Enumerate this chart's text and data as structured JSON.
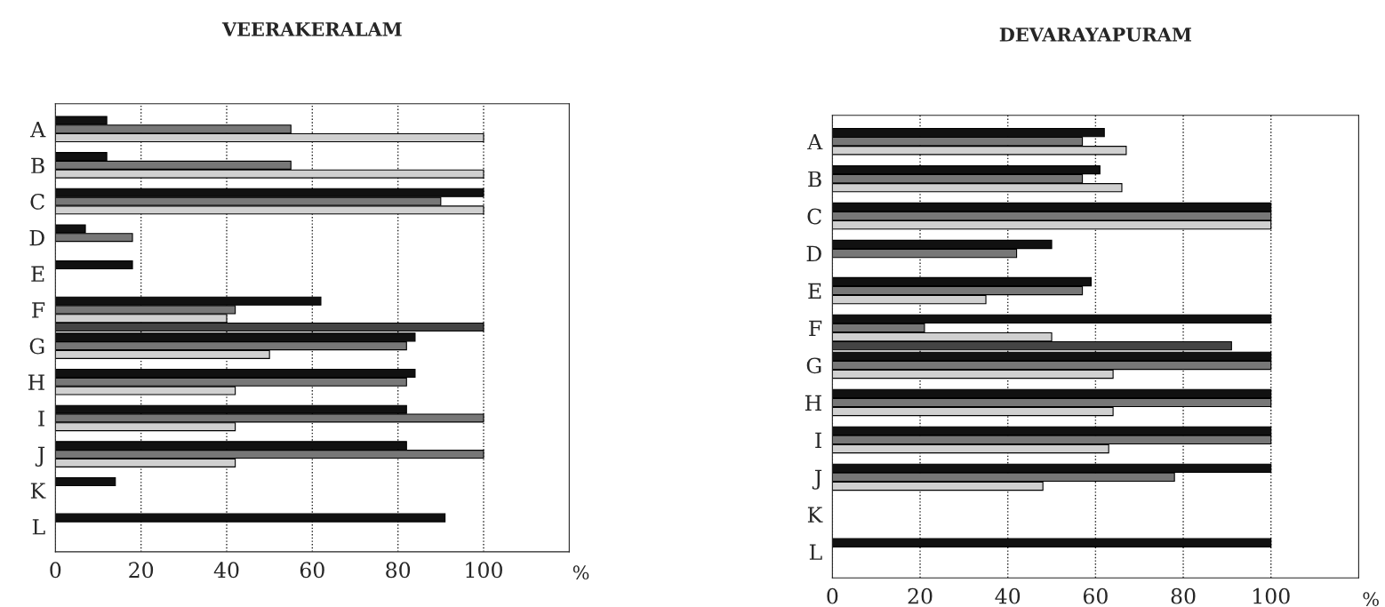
{
  "chart_data": [
    {
      "type": "bar",
      "orientation": "horizontal",
      "title": "VEERAKERALAM",
      "xlabel": "%",
      "categories": [
        "A",
        "B",
        "C",
        "D",
        "E",
        "F",
        "G",
        "H",
        "I",
        "J",
        "K",
        "L"
      ],
      "series": [
        {
          "color": "#111111",
          "values": [
            12,
            12,
            100,
            7,
            18,
            62,
            84,
            84,
            82,
            82,
            14,
            91
          ]
        },
        {
          "color": "#777777",
          "values": [
            55,
            55,
            90,
            18,
            null,
            42,
            82,
            82,
            100,
            100,
            null,
            null
          ]
        },
        {
          "color": "#d0d0d0",
          "values": [
            100,
            100,
            100,
            null,
            null,
            40,
            50,
            42,
            42,
            42,
            null,
            null
          ]
        },
        {
          "color": "#444444",
          "values": [
            null,
            null,
            null,
            null,
            null,
            100,
            null,
            null,
            null,
            null,
            null,
            null
          ]
        }
      ],
      "xlim": [
        0,
        120
      ],
      "xticks": [
        0,
        20,
        40,
        60,
        80,
        100
      ],
      "grid": "x"
    },
    {
      "type": "bar",
      "orientation": "horizontal",
      "title": "DEVARAYAPURAM",
      "xlabel": "%",
      "categories": [
        "A",
        "B",
        "C",
        "D",
        "E",
        "F",
        "G",
        "H",
        "I",
        "J",
        "K",
        "L"
      ],
      "series": [
        {
          "color": "#111111",
          "values": [
            62,
            61,
            100,
            50,
            59,
            100,
            100,
            100,
            100,
            100,
            null,
            100
          ]
        },
        {
          "color": "#777777",
          "values": [
            57,
            57,
            100,
            42,
            57,
            21,
            100,
            100,
            100,
            78,
            null,
            null
          ]
        },
        {
          "color": "#d0d0d0",
          "values": [
            67,
            66,
            100,
            null,
            35,
            50,
            64,
            64,
            63,
            48,
            null,
            null
          ]
        },
        {
          "color": "#444444",
          "values": [
            null,
            null,
            null,
            null,
            null,
            91,
            null,
            null,
            null,
            null,
            null,
            null
          ]
        }
      ],
      "xlim": [
        0,
        120
      ],
      "xticks": [
        0,
        20,
        40,
        60,
        80,
        100
      ],
      "grid": "x"
    }
  ]
}
